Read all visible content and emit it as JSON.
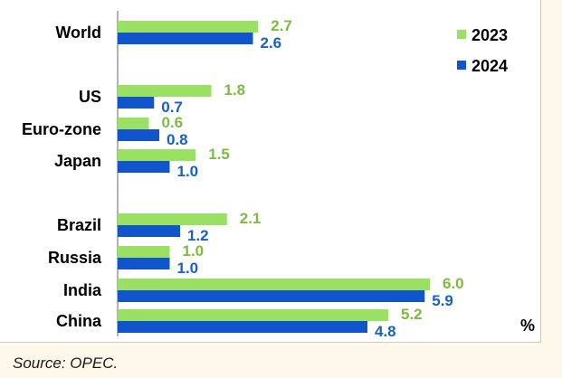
{
  "chart_data": {
    "type": "bar",
    "orientation": "horizontal",
    "categories": [
      "World",
      "US",
      "Euro-zone",
      "Japan",
      "Brazil",
      "Russia",
      "India",
      "China"
    ],
    "series": [
      {
        "name": "2023",
        "color": "#99e064",
        "values": [
          2.7,
          1.8,
          0.6,
          1.5,
          2.1,
          1.0,
          6.0,
          5.2
        ]
      },
      {
        "name": "2024",
        "color": "#1155cc",
        "values": [
          2.6,
          0.7,
          0.8,
          1.0,
          1.2,
          1.0,
          5.9,
          4.8
        ]
      }
    ],
    "value_labels": {
      "2023": [
        "2.7",
        "1.8",
        "0.6",
        "1.5",
        "2.1",
        "1.0",
        "6.0",
        "5.2"
      ],
      "2024": [
        "2.6",
        "0.7",
        "0.8",
        "1.0",
        "1.2",
        "1.0",
        "5.9",
        "4.8"
      ]
    },
    "label_colors": {
      "2023": "#7dbb3e",
      "2024": "#1561c4"
    },
    "xlim": [
      0,
      6.5
    ],
    "unit": "%",
    "legend": {
      "placement": "top-right",
      "items": [
        "2023",
        "2024"
      ]
    },
    "grid": false
  },
  "source": "Source: OPEC."
}
